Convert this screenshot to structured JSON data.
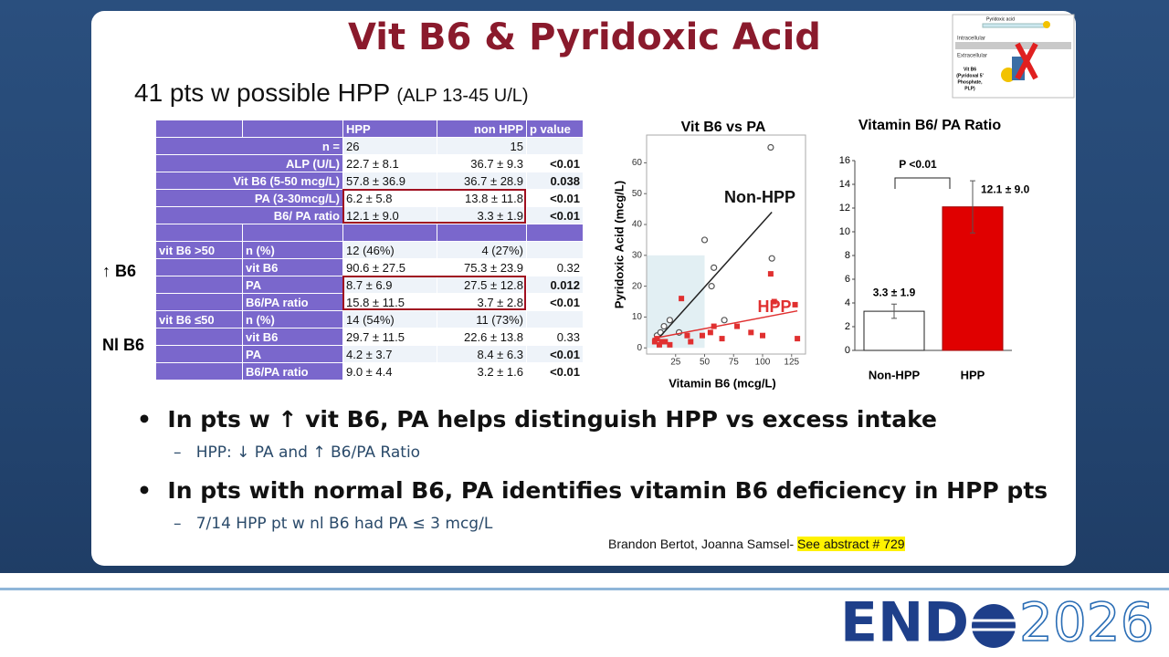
{
  "title": "Vit B6 & Pyridoxic Acid",
  "subtitle": {
    "main": "41 pts w possible HPP",
    "note": "(ALP 13-45 U/L)"
  },
  "figure_texts": [
    "Pyridoxic acid",
    "Intracellular",
    "Extracellular",
    "Vit B6",
    "(Pyridoxal 5'",
    "Phosphate,",
    "PLP)"
  ],
  "table": {
    "header": {
      "hpp": "HPP",
      "non_hpp": "non HPP",
      "p": "p  value"
    },
    "rows": [
      {
        "label": "n =",
        "hpp": "26",
        "non_hpp": "15"
      },
      {
        "label": "ALP  (U/L)",
        "hpp": "22.7 ± 8.1",
        "non_hpp": "36.7 ± 9.3",
        "p": "<0.01"
      },
      {
        "label": "Vit B6 (5-50 mcg/L)",
        "hpp": "57.8 ± 36.9",
        "non_hpp": "36.7 ± 28.9",
        "p": "0.038"
      },
      {
        "label": "PA (3-30mcg/L)",
        "hpp": "6.2 ± 5.8",
        "non_hpp": "13.8 ± 11.8",
        "p": "<0.01"
      },
      {
        "label": "B6/ PA ratio",
        "hpp": "12.1 ± 9.0",
        "non_hpp": "3.3 ± 1.9",
        "p": "<0.01"
      },
      {},
      {
        "group": "vit B6 >50",
        "sub": "n (%)",
        "hpp": "12 (46%)",
        "non_hpp": "4 (27%)"
      },
      {
        "sub": "vit B6",
        "hpp": "90.6 ± 27.5",
        "non_hpp": "75.3 ± 23.9",
        "p": "0.32"
      },
      {
        "sub": "PA",
        "hpp": "8.7 ± 6.9",
        "non_hpp": "27.5 ± 12.8",
        "p": "0.012"
      },
      {
        "sub": "B6/PA ratio",
        "hpp": "15.8 ± 11.5",
        "non_hpp": "3.7 ± 2.8",
        "p": "<0.01"
      },
      {
        "group": "vit B6 ≤50",
        "sub": "n (%)",
        "hpp": "14 (54%)",
        "non_hpp": "11 (73%)"
      },
      {
        "sub": "vit B6",
        "hpp": "29.7 ± 11.5",
        "non_hpp": "22.6 ± 13.8",
        "p": "0.33"
      },
      {
        "sub": "PA",
        "hpp": "4.2 ± 3.7",
        "non_hpp": "8.4 ± 6.3",
        "p": "<0.01"
      },
      {
        "sub": "B6/PA ratio",
        "hpp": "9.0 ± 4.4",
        "non_hpp": "3.2 ± 1.6",
        "p": "<0.01"
      }
    ]
  },
  "side_labels": [
    "↑ B6",
    "Nl B6"
  ],
  "chart_data": [
    {
      "type": "scatter",
      "title": "Vit B6 vs PA",
      "x_label": "Vitamin B6 (mcg/L)",
      "y_label": "Pyridoxic Acid (mcg/L)",
      "xlim": [
        0,
        137
      ],
      "ylim": [
        -2,
        69
      ],
      "xticks": [
        25,
        50,
        75,
        100,
        125
      ],
      "yticks": [
        0,
        10,
        20,
        30,
        40,
        50,
        60
      ],
      "shaded_region": {
        "xlim": [
          0,
          50
        ],
        "ylim": [
          0,
          30
        ],
        "color": "#e2eff3"
      },
      "series": [
        {
          "name": "Non-HPP",
          "color": "#555555",
          "marker": "circle",
          "x": [
            9,
            12,
            15,
            20,
            28,
            50,
            56,
            58,
            67,
            107,
            108
          ],
          "values": [
            4,
            5,
            7,
            9,
            5,
            35,
            20,
            26,
            9,
            65,
            29
          ],
          "fit": {
            "color": "#222222",
            "x": [
              10,
              108
            ],
            "values": [
              3,
              44
            ]
          }
        },
        {
          "name": "HPP",
          "color": "#e03030",
          "marker": "square",
          "x": [
            7,
            9,
            11,
            13,
            16,
            20,
            30,
            35,
            38,
            48,
            55,
            58,
            65,
            78,
            90,
            100,
            107,
            110,
            128,
            130
          ],
          "values": [
            2,
            3,
            1,
            2,
            2,
            1,
            16,
            4,
            2,
            4,
            5,
            7,
            3,
            7,
            5,
            4,
            24,
            15,
            14,
            3
          ],
          "fit": {
            "color": "#e03030",
            "x": [
              5,
              130
            ],
            "values": [
              3,
              12
            ]
          }
        }
      ]
    },
    {
      "type": "bar",
      "title": "Vitamin B6/ PA Ratio",
      "categories": [
        "Non-HPP",
        "HPP"
      ],
      "values": [
        3.3,
        12.1
      ],
      "value_labels": [
        "3.3 ± 1.9",
        "12.1 ± 9.0"
      ],
      "errors": [
        0.6,
        2.2
      ],
      "colors": [
        "#ffffff",
        "#e00000"
      ],
      "ylim": [
        0,
        16
      ],
      "yticks": [
        0,
        2,
        4,
        6,
        8,
        10,
        12,
        14,
        16
      ],
      "annotation": "P <0.01"
    }
  ],
  "bullets": [
    {
      "text": "In pts w ↑ vit B6,  PA helps distinguish HPP vs excess intake",
      "sub": "HPP: ↓ PA and ↑ B6/PA Ratio"
    },
    {
      "text": "In pts with normal B6, PA identifies vitamin B6 deficiency in HPP pts",
      "sub": "7/14 HPP pt w nl B6 had PA ≤ 3 mcg/L"
    }
  ],
  "citation": {
    "authors": "Brandon Bertot, Joanna Samsel-",
    "link": "See abstract # 729"
  },
  "logo": {
    "left": "END",
    "right": "2026"
  }
}
